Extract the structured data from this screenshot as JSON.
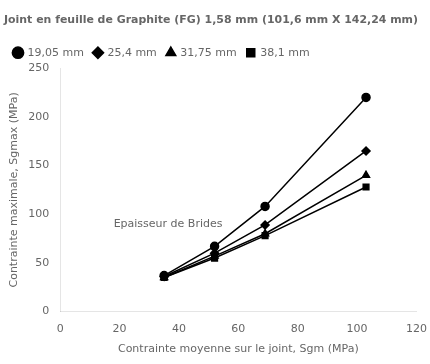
{
  "chart_data": {
    "type": "line",
    "title": "Joint en feuille de Graphite (FG) 1,58 mm (101,6 mm X 142,24 mm)",
    "xlabel": "Contrainte moyenne sur le joint, Sgm (MPa)",
    "ylabel": "Contrainte maximale, Sgmax (MPa)",
    "annotation": "Epaisseur de Brides",
    "x": [
      35,
      52,
      69,
      103
    ],
    "series": [
      {
        "name": "19,05 mm",
        "color": "#000000",
        "marker": "circle",
        "values": [
          37,
          67,
          108,
          220
        ]
      },
      {
        "name": "25,4 mm",
        "color": "#000000",
        "marker": "diamond",
        "values": [
          36,
          60,
          89,
          165
        ]
      },
      {
        "name": "31,75 mm",
        "color": "#000000",
        "marker": "triangle",
        "values": [
          35,
          57,
          80,
          140
        ]
      },
      {
        "name": "38,1 mm",
        "color": "#000000",
        "marker": "square",
        "values": [
          35,
          55,
          78,
          128
        ]
      }
    ],
    "xlim": [
      0,
      120
    ],
    "ylim": [
      0,
      250
    ],
    "xticks": [
      0,
      20,
      40,
      60,
      80,
      100,
      120
    ],
    "yticks": [
      0,
      50,
      100,
      150,
      200,
      250
    ],
    "grid": false,
    "legend": "upper left"
  }
}
